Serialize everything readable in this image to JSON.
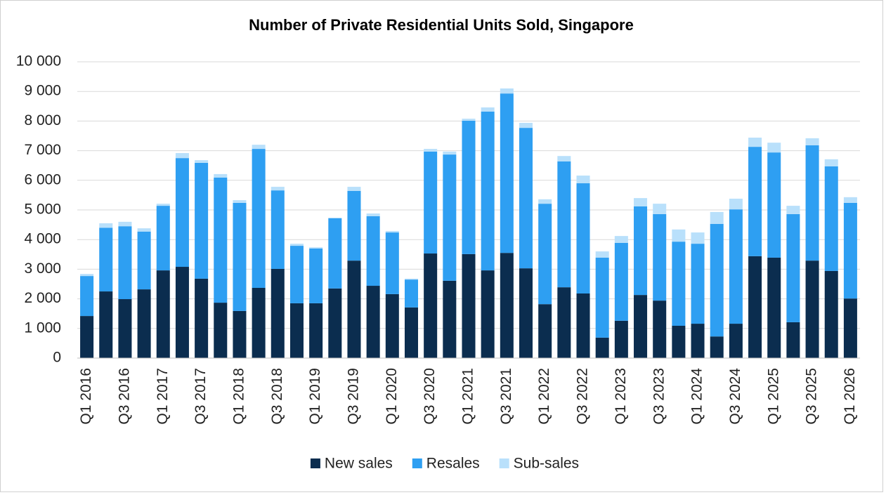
{
  "chart_data": {
    "type": "stacked_bar",
    "title": "Number of Private Residential Units Sold, Singapore",
    "categories": [
      "Q1 2016",
      null,
      "Q3 2016",
      null,
      "Q1 2017",
      null,
      "Q3 2017",
      null,
      "Q1 2018",
      null,
      "Q3 2018",
      null,
      "Q1 2019",
      null,
      "Q3 2019",
      null,
      "Q1 2020",
      null,
      "Q3 2020",
      null,
      "Q1 2021",
      null,
      "Q3 2021",
      null,
      "Q1 2022",
      null,
      "Q3 2022",
      null,
      "Q1 2023",
      null,
      "Q3 2023",
      null,
      "Q1 2024",
      null,
      "Q3 2024",
      null,
      "Q1 2025",
      null,
      "Q3 2025",
      null,
      "Q1 2026"
    ],
    "series": [
      {
        "name": "New sales",
        "color": "#0b2d4f",
        "values": [
          1420,
          2250,
          1990,
          2320,
          2960,
          3080,
          2680,
          1870,
          1590,
          2370,
          3010,
          1850,
          1850,
          2350,
          3290,
          2440,
          2160,
          1710,
          3530,
          2610,
          3510,
          2960,
          3550,
          3030,
          1820,
          2390,
          2180,
          690,
          1260,
          2130,
          1940,
          1090,
          1160,
          730,
          1160,
          3440,
          3390,
          1210,
          3290,
          2940,
          2010
        ]
      },
      {
        "name": "Resales",
        "color": "#2e9ff2",
        "values": [
          1350,
          2150,
          2460,
          1950,
          2180,
          3670,
          3910,
          4220,
          3650,
          4690,
          2650,
          1940,
          1850,
          2370,
          2350,
          2350,
          2080,
          940,
          3440,
          4260,
          4500,
          5360,
          5380,
          4740,
          3390,
          4250,
          3720,
          2700,
          2630,
          2990,
          2920,
          2840,
          2700,
          3800,
          3860,
          3690,
          3550,
          3650,
          3890,
          3530,
          3230
        ]
      },
      {
        "name": "Sub-sales",
        "color": "#b9e0fb",
        "values": [
          70,
          150,
          150,
          110,
          70,
          170,
          90,
          120,
          90,
          140,
          120,
          70,
          40,
          20,
          140,
          90,
          50,
          30,
          90,
          100,
          70,
          140,
          170,
          170,
          150,
          180,
          260,
          210,
          230,
          280,
          350,
          410,
          380,
          400,
          360,
          310,
          330,
          280,
          240,
          240,
          190
        ]
      }
    ],
    "ylim": [
      0,
      10000
    ],
    "yticks": [
      0,
      {
        "value": 1000,
        "label": "1 000"
      },
      {
        "value": 2000,
        "label": "2 000"
      },
      {
        "value": 3000,
        "label": "3 000"
      },
      {
        "value": 4000,
        "label": "4 000"
      },
      {
        "value": 5000,
        "label": "5 000"
      },
      {
        "value": 6000,
        "label": "6 000"
      },
      {
        "value": 7000,
        "label": "7 000"
      },
      {
        "value": 8000,
        "label": "8 000"
      },
      {
        "value": 9000,
        "label": "9 000"
      },
      {
        "value": 10000,
        "label": "10 000"
      }
    ],
    "grid": true,
    "legend": "bottom"
  }
}
